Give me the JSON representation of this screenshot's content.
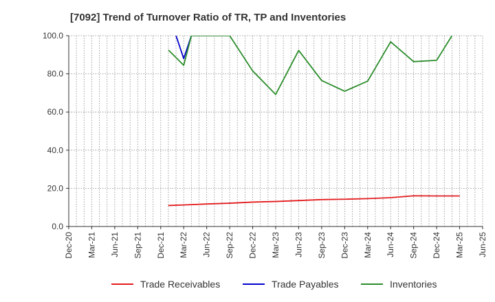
{
  "chart_data": {
    "type": "line",
    "title": "[7092]  Trend of Turnover Ratio of TR, TP and Inventories",
    "xlabel": "",
    "ylabel": "",
    "ylim": [
      0,
      100
    ],
    "yticks": [
      "0.0",
      "20.0",
      "40.0",
      "60.0",
      "80.0",
      "100.0"
    ],
    "x_tick_labels": [
      "Dec-20",
      "Mar-21",
      "Jun-21",
      "Sep-21",
      "Dec-21",
      "Mar-22",
      "Jun-22",
      "Sep-22",
      "Dec-22",
      "Mar-23",
      "Jun-23",
      "Sep-23",
      "Dec-23",
      "Mar-24",
      "Jun-24",
      "Sep-24",
      "Dec-24",
      "Mar-25",
      "Jun-25"
    ],
    "grid": true,
    "legend_position": "bottom",
    "series": [
      {
        "name": "Trade Receivables",
        "color": "#e31a1c",
        "points": [
          [
            "Jan-22",
            11.0
          ],
          [
            "Mar-22",
            11.3
          ],
          [
            "Jun-22",
            11.8
          ],
          [
            "Sep-22",
            12.2
          ],
          [
            "Dec-22",
            12.8
          ],
          [
            "Mar-23",
            13.1
          ],
          [
            "Jun-23",
            13.6
          ],
          [
            "Sep-23",
            14.1
          ],
          [
            "Dec-23",
            14.3
          ],
          [
            "Mar-24",
            14.6
          ],
          [
            "Jun-24",
            15.1
          ],
          [
            "Sep-24",
            16.1
          ],
          [
            "Dec-24",
            16.0
          ],
          [
            "Mar-25",
            16.0
          ]
        ]
      },
      {
        "name": "Trade Payables",
        "color": "#0000cc",
        "points": [
          [
            "Feb-22",
            100.0
          ],
          [
            "Mar-22",
            88.0
          ],
          [
            "Apr-22",
            100.0
          ]
        ]
      },
      {
        "name": "Inventories",
        "color": "#2a8c2a",
        "points": [
          [
            "Jan-22",
            92.5
          ],
          [
            "Mar-22",
            84.5
          ],
          [
            "Apr-22",
            100.0
          ],
          [
            "Sep-22",
            100.0
          ],
          [
            "Dec-22",
            81.5
          ],
          [
            "Mar-23",
            69.2
          ],
          [
            "Jun-23",
            92.3
          ],
          [
            "Sep-23",
            76.5
          ],
          [
            "Dec-23",
            70.9
          ],
          [
            "Mar-24",
            76.2
          ],
          [
            "Jun-24",
            96.8
          ],
          [
            "Sep-24",
            86.4
          ],
          [
            "Dec-24",
            87.1
          ],
          [
            "Feb-25",
            100.0
          ]
        ]
      }
    ]
  }
}
